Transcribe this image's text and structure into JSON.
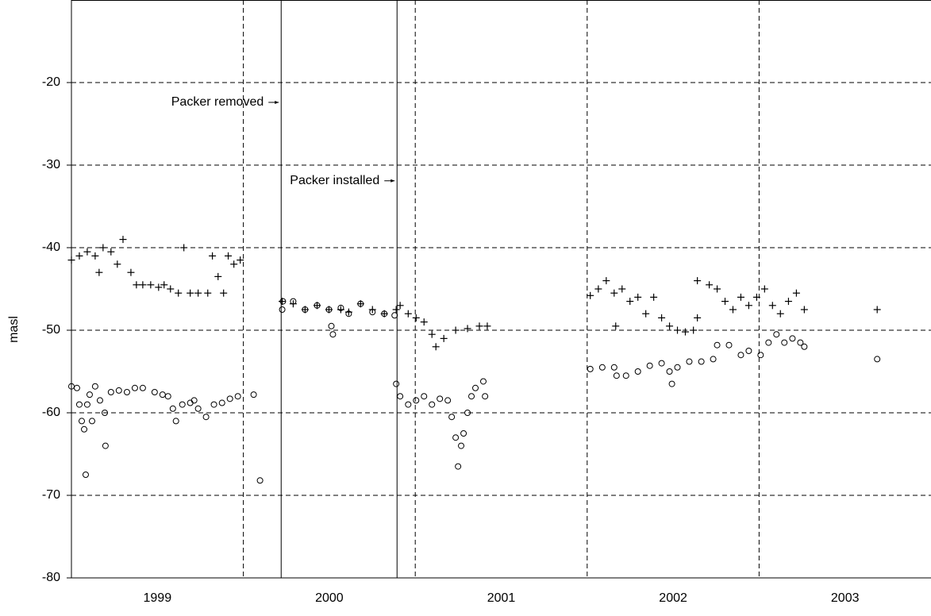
{
  "chart_data": {
    "type": "scatter",
    "y_label": "masl",
    "xlim": [
      1999,
      2004
    ],
    "xticks": [
      {
        "value": 1999.5,
        "label": "1999"
      },
      {
        "value": 2000.5,
        "label": "2000"
      },
      {
        "value": 2001.5,
        "label": "2001"
      },
      {
        "value": 2002.5,
        "label": "2002"
      },
      {
        "value": 2003.5,
        "label": "2003"
      }
    ],
    "xgrid": [
      2000,
      2001,
      2002,
      2003
    ],
    "ylim": [
      -80,
      -10
    ],
    "yticks": [
      -20,
      -30,
      -40,
      -50,
      -60,
      -70,
      -80
    ],
    "grid": true,
    "annotations": [
      {
        "text": "Packer removed",
        "x": 2000.22,
        "y": -22.4
      },
      {
        "text": "Packer installed",
        "x": 2000.894,
        "y": -31.9
      }
    ],
    "series": [
      {
        "marker": "plus",
        "color": "#000000",
        "x": [
          1999.0,
          1999.046,
          1999.092,
          1999.138,
          1999.161,
          1999.184,
          1999.23,
          1999.267,
          1999.3,
          1999.346,
          1999.378,
          1999.415,
          1999.461,
          1999.507,
          1999.539,
          1999.576,
          1999.622,
          1999.654,
          1999.691,
          1999.737,
          1999.793,
          1999.82,
          1999.853,
          1999.885,
          1999.912,
          1999.945,
          1999.982,
          2000.226,
          2000.29,
          2000.359,
          2000.429,
          2000.498,
          2000.567,
          2000.613,
          2000.682,
          2000.751,
          2000.82,
          2000.889,
          2000.912,
          2000.959,
          2001.005,
          2001.051,
          2001.097,
          2001.12,
          2001.166,
          2001.235,
          2001.304,
          2001.373,
          2001.419,
          2002.018,
          2002.065,
          2002.111,
          2002.157,
          2002.166,
          2002.203,
          2002.249,
          2002.295,
          2002.341,
          2002.387,
          2002.433,
          2002.479,
          2002.525,
          2002.571,
          2002.618,
          2002.641,
          2002.641,
          2002.71,
          2002.756,
          2002.802,
          2002.848,
          2002.894,
          2002.94,
          2002.986,
          2003.032,
          2003.078,
          2003.124,
          2003.171,
          2003.217,
          2003.263,
          2003.687
        ],
        "values": [
          -41.5,
          -41,
          -40.5,
          -41,
          -43,
          -40,
          -40.5,
          -42,
          -39,
          -43,
          -44.5,
          -44.5,
          -44.5,
          -44.8,
          -44.5,
          -45,
          -45.5,
          -40,
          -45.5,
          -45.5,
          -45.5,
          -41,
          -43.5,
          -45.5,
          -41,
          -42,
          -41.5,
          -46.5,
          -46.8,
          -47.5,
          -47,
          -47.5,
          -47.5,
          -47.8,
          -46.8,
          -47.5,
          -48,
          -47.5,
          -47,
          -48,
          -48.5,
          -49,
          -50.5,
          -52,
          -51,
          -50,
          -49.8,
          -49.5,
          -49.5,
          -45.8,
          -45,
          -44,
          -45.5,
          -49.5,
          -45,
          -46.5,
          -46,
          -48,
          -46,
          -48.5,
          -49.5,
          -50,
          -50.2,
          -50,
          -48.5,
          -44,
          -44.5,
          -45,
          -46.5,
          -47.5,
          -46,
          -47,
          -46,
          -45,
          -47,
          -48,
          -46.5,
          -45.5,
          -47.5,
          -47.5
        ]
      },
      {
        "marker": "circle",
        "color": "#000000",
        "x": [
          1999.0,
          1999.032,
          1999.046,
          1999.06,
          1999.074,
          1999.083,
          1999.092,
          1999.106,
          1999.12,
          1999.138,
          1999.166,
          1999.194,
          1999.198,
          1999.23,
          1999.276,
          1999.323,
          1999.369,
          1999.415,
          1999.484,
          1999.53,
          1999.562,
          1999.59,
          1999.608,
          1999.645,
          1999.691,
          1999.714,
          1999.737,
          1999.783,
          1999.829,
          1999.876,
          1999.922,
          1999.968,
          2000.06,
          2000.097,
          2000.226,
          2000.23,
          2000.29,
          2000.359,
          2000.429,
          2000.498,
          2000.512,
          2000.521,
          2000.567,
          2000.613,
          2000.682,
          2000.751,
          2000.82,
          2000.88,
          2000.889,
          2000.912,
          2000.959,
          2001.005,
          2001.051,
          2001.097,
          2001.143,
          2001.189,
          2001.212,
          2001.235,
          2001.249,
          2001.267,
          2001.281,
          2001.304,
          2001.327,
          2001.35,
          2001.396,
          2001.406,
          2002.018,
          2002.088,
          2002.157,
          2002.171,
          2002.226,
          2002.295,
          2002.364,
          2002.433,
          2002.479,
          2002.493,
          2002.525,
          2002.594,
          2002.664,
          2002.733,
          2002.756,
          2002.825,
          2002.894,
          2002.94,
          2003.009,
          2003.055,
          2003.101,
          2003.147,
          2003.194,
          2003.24,
          2003.263,
          2003.687
        ],
        "values": [
          -56.8,
          -57,
          -59,
          -61,
          -62,
          -67.5,
          -59,
          -57.8,
          -61,
          -56.8,
          -58.5,
          -60,
          -64,
          -57.5,
          -57.3,
          -57.5,
          -57,
          -57,
          -57.5,
          -57.8,
          -58,
          -59.5,
          -61,
          -59,
          -58.8,
          -58.5,
          -59.5,
          -60.5,
          -59,
          -58.8,
          -58.3,
          -58,
          -57.8,
          -68.2,
          -47.5,
          -46.5,
          -46.5,
          -47.5,
          -47,
          -47.5,
          -49.5,
          -50.5,
          -47.3,
          -48,
          -46.8,
          -47.8,
          -48,
          -48.2,
          -56.5,
          -58,
          -59,
          -58.5,
          -58,
          -59,
          -58.3,
          -58.5,
          -60.5,
          -63,
          -66.5,
          -64,
          -62.5,
          -60,
          -58,
          -57,
          -56.2,
          -58,
          -54.7,
          -54.5,
          -54.5,
          -55.5,
          -55.5,
          -55,
          -54.3,
          -54,
          -55,
          -56.5,
          -54.5,
          -53.8,
          -53.8,
          -53.5,
          -51.8,
          -51.8,
          -53,
          -52.5,
          -53,
          -51.5,
          -50.5,
          -51.5,
          -51,
          -51.5,
          -52,
          -53.5
        ]
      }
    ]
  }
}
